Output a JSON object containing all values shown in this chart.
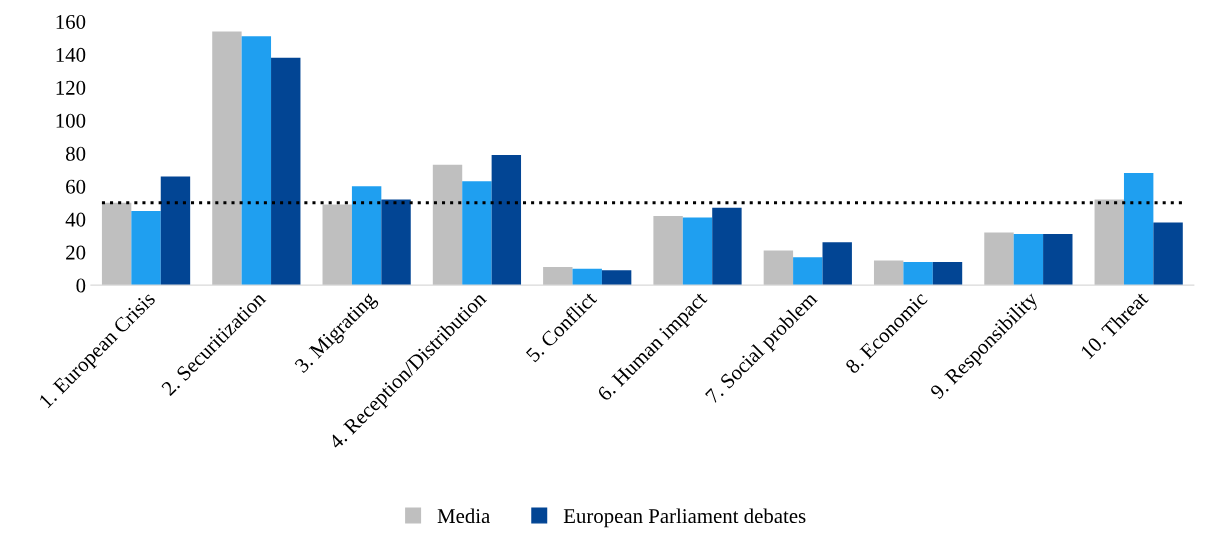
{
  "chart_data": {
    "type": "bar",
    "categories": [
      "1. European Crisis",
      "2. Securitization",
      "3. Migrating",
      "4. Reception/Distribution",
      "5. Conflict",
      "6. Human impact",
      "7. Social problem",
      "8. Economic",
      "9. Responsibility",
      "10. Threat"
    ],
    "series": [
      {
        "name": "Media",
        "color": "#bfbfbf",
        "values": [
          50,
          154,
          49,
          73,
          11,
          42,
          21,
          15,
          32,
          52
        ]
      },
      {
        "color": "#1f9ff0",
        "values": [
          45,
          151,
          60,
          63,
          10,
          41,
          17,
          14,
          31,
          68
        ]
      },
      {
        "name": "European Parliament debates",
        "color": "#024594",
        "values": [
          66,
          138,
          52,
          79,
          9,
          47,
          26,
          14,
          31,
          38
        ]
      }
    ],
    "ylim": [
      0,
      160
    ],
    "yticks": [
      0,
      20,
      40,
      60,
      80,
      100,
      120,
      140,
      160
    ],
    "ref_lines": [
      {
        "axis": "y",
        "value": 50,
        "color": "#000000",
        "line_style": "dotted"
      }
    ],
    "grid": false,
    "legend": "bottom"
  }
}
